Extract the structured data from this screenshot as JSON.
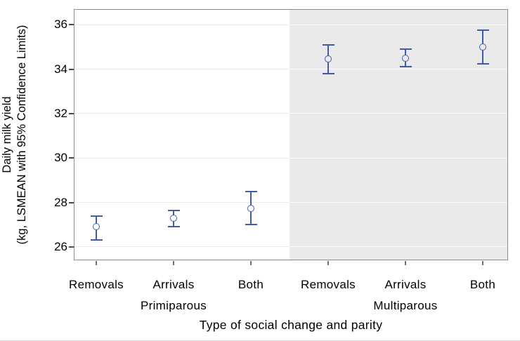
{
  "chart_data": {
    "type": "scatter",
    "subtype": "errorbar-dotplot",
    "title": "",
    "xlabel": "Type of social change and parity",
    "ylabel": [
      "Daily milk yield",
      "(kg, LSMEAN with 95% Confidence Limits)"
    ],
    "categories": [
      "Removals",
      "Arrivals",
      "Both",
      "Removals",
      "Arrivals",
      "Both"
    ],
    "group_labels": [
      "Primiparous",
      "Multiparous"
    ],
    "yticks": [
      "26",
      "28",
      "30",
      "32",
      "34",
      "36"
    ],
    "ytick_values": [
      26,
      28,
      30,
      32,
      34,
      36
    ],
    "ylim": [
      25.4,
      36.7
    ],
    "grid": true,
    "legend_position": "none",
    "band_region": "Multiparous",
    "series": [
      {
        "name": "LSMEAN with 95% Confidence Limits",
        "points": [
          {
            "parity": "Primiparous",
            "category": "Removals",
            "mean": 26.9,
            "ci_low": 26.3,
            "ci_high": 27.4
          },
          {
            "parity": "Primiparous",
            "category": "Arrivals",
            "mean": 27.3,
            "ci_low": 26.9,
            "ci_high": 27.65
          },
          {
            "parity": "Primiparous",
            "category": "Both",
            "mean": 27.75,
            "ci_low": 27.0,
            "ci_high": 28.5
          },
          {
            "parity": "Multiparous",
            "category": "Removals",
            "mean": 34.45,
            "ci_low": 33.8,
            "ci_high": 35.1
          },
          {
            "parity": "Multiparous",
            "category": "Arrivals",
            "mean": 34.5,
            "ci_low": 34.1,
            "ci_high": 34.9
          },
          {
            "parity": "Multiparous",
            "category": "Both",
            "mean": 35.0,
            "ci_low": 34.25,
            "ci_high": 35.75
          }
        ]
      }
    ],
    "colors": {
      "marker": "#3d5da7",
      "band": "#eaeaea",
      "grid_on_white": "#ececec",
      "grid_on_band": "#fafafa",
      "frame": "#8f8f8f",
      "text": "#000000"
    }
  }
}
